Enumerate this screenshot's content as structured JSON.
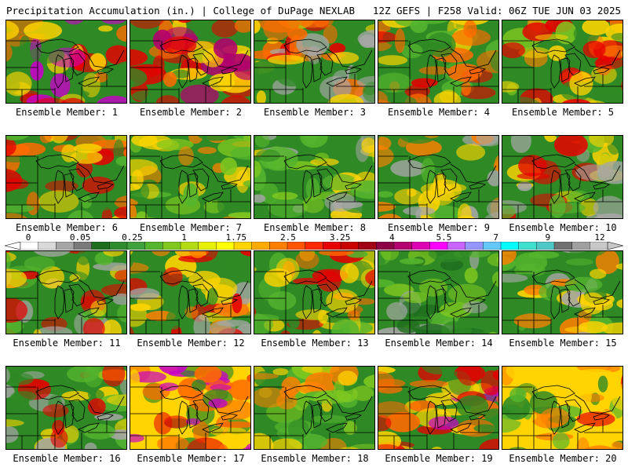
{
  "header": {
    "left": "Precipitation Accumulation (in.) | College of DuPage NEXLAB",
    "right": "12Z GEFS | F258 Valid: 06Z TUE JUN 03 2025"
  },
  "colorbar": {
    "labels": [
      "0",
      "0.05",
      "0.25",
      "1",
      "1.75",
      "2.5",
      "3.25",
      "4",
      "5.5",
      "7",
      "9",
      "12"
    ],
    "colors": [
      "#ffffff",
      "#d9d9d9",
      "#a6a6a6",
      "#7a7a7a",
      "#1f6e1f",
      "#2e8b2e",
      "#3fa23f",
      "#55b52e",
      "#80c820",
      "#b4dc14",
      "#e6f000",
      "#ffff00",
      "#ffd400",
      "#ffaa00",
      "#ff8000",
      "#ff5500",
      "#ff2a00",
      "#e60000",
      "#c80000",
      "#a00014",
      "#8c0046",
      "#b4006e",
      "#dc00b4",
      "#ff00ff",
      "#c864ff",
      "#9696ff",
      "#64c8ff",
      "#00ffff",
      "#40e0d0",
      "#50c8c8",
      "#707070",
      "#a0a0a0",
      "#c8c8c8"
    ]
  },
  "panels": [
    {
      "label": "Ensemble Member: 1",
      "palette": [
        "#2f8a25",
        "#ffd400",
        "#ff6a00",
        "#c800c8",
        "#e60000"
      ]
    },
    {
      "label": "Ensemble Member: 2",
      "palette": [
        "#2f8a25",
        "#ffd400",
        "#ff6a00",
        "#e60000",
        "#b4006e"
      ]
    },
    {
      "label": "Ensemble Member: 3",
      "palette": [
        "#2f8a25",
        "#a6a6a6",
        "#ffd400",
        "#ff6a00",
        "#e60000"
      ]
    },
    {
      "label": "Ensemble Member: 4",
      "palette": [
        "#2f8a25",
        "#55b52e",
        "#ffd400",
        "#ff6a00",
        "#e60000"
      ]
    },
    {
      "label": "Ensemble Member: 5",
      "palette": [
        "#2f8a25",
        "#ffd400",
        "#ff8000",
        "#e60000",
        "#80c820"
      ]
    },
    {
      "label": "Ensemble Member: 6",
      "palette": [
        "#2f8a25",
        "#55b52e",
        "#ffd400",
        "#ff6a00",
        "#e60000"
      ]
    },
    {
      "label": "Ensemble Member: 7",
      "palette": [
        "#2f8a25",
        "#55b52e",
        "#ffd400",
        "#ff8000",
        "#80c820"
      ]
    },
    {
      "label": "Ensemble Member: 8",
      "palette": [
        "#2f8a25",
        "#55b52e",
        "#ffd400",
        "#a6a6a6",
        "#80c820"
      ]
    },
    {
      "label": "Ensemble Member: 9",
      "palette": [
        "#2f8a25",
        "#ffd400",
        "#a6a6a6",
        "#ff8000",
        "#55b52e"
      ]
    },
    {
      "label": "Ensemble Member: 10",
      "palette": [
        "#2f8a25",
        "#55b52e",
        "#a6a6a6",
        "#ffd400",
        "#e60000"
      ]
    },
    {
      "label": "Ensemble Member: 11",
      "palette": [
        "#2f8a25",
        "#55b52e",
        "#ffd400",
        "#a6a6a6",
        "#e60000"
      ]
    },
    {
      "label": "Ensemble Member: 12",
      "palette": [
        "#2f8a25",
        "#ffd400",
        "#ff8000",
        "#a6a6a6",
        "#e60000"
      ]
    },
    {
      "label": "Ensemble Member: 13",
      "palette": [
        "#2f8a25",
        "#55b52e",
        "#ffd400",
        "#ff6a00",
        "#e60000"
      ]
    },
    {
      "label": "Ensemble Member: 14",
      "palette": [
        "#2f8a25",
        "#55b52e",
        "#1f6e1f",
        "#a6a6a6",
        "#80c820"
      ]
    },
    {
      "label": "Ensemble Member: 15",
      "palette": [
        "#2f8a25",
        "#55b52e",
        "#a6a6a6",
        "#ffd400",
        "#ff8000"
      ]
    },
    {
      "label": "Ensemble Member: 16",
      "palette": [
        "#2f8a25",
        "#55b52e",
        "#a6a6a6",
        "#ffd400",
        "#e60000"
      ]
    },
    {
      "label": "Ensemble Member: 17",
      "palette": [
        "#ffd400",
        "#ff6a00",
        "#e60000",
        "#c800c8",
        "#2f8a25"
      ]
    },
    {
      "label": "Ensemble Member: 18",
      "palette": [
        "#2f8a25",
        "#55b52e",
        "#ffd400",
        "#ff8000",
        "#80c820"
      ]
    },
    {
      "label": "Ensemble Member: 19",
      "palette": [
        "#2f8a25",
        "#ffd400",
        "#ff6a00",
        "#e60000",
        "#c800c8"
      ]
    },
    {
      "label": "Ensemble Member: 20",
      "palette": [
        "#ffd400",
        "#ff8000",
        "#2f8a25",
        "#e60000",
        "#55b52e"
      ]
    }
  ]
}
